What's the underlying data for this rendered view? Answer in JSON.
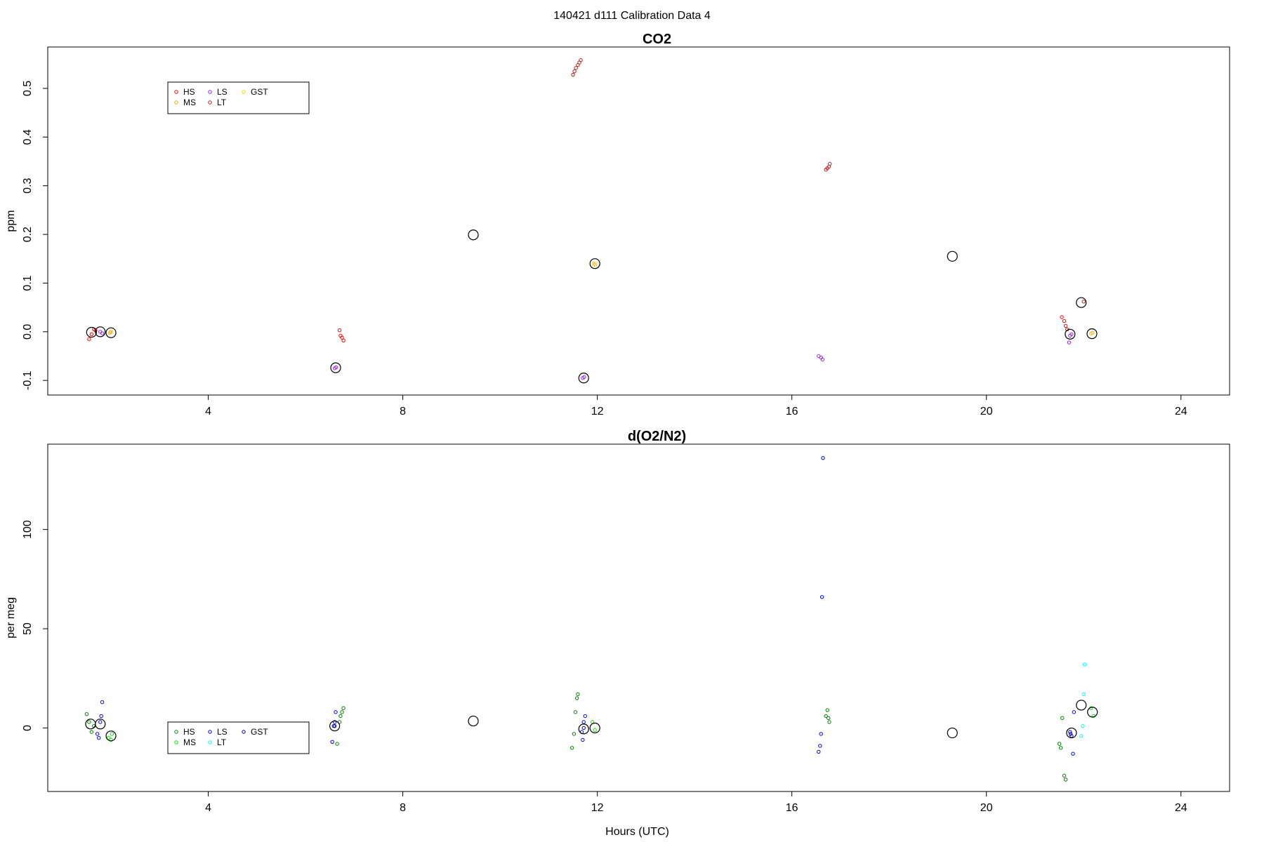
{
  "figure_title": "140421   d111   Calibration Data 4",
  "chart_data": [
    {
      "type": "scatter",
      "title": "CO2",
      "xlabel": "",
      "ylabel": "ppm",
      "xlim": [
        0.7,
        25
      ],
      "ylim": [
        -0.13,
        0.585
      ],
      "xticks": [
        4,
        8,
        12,
        16,
        20,
        24
      ],
      "yticks": [
        -0.1,
        0.0,
        0.1,
        0.2,
        0.3,
        0.4,
        0.5
      ],
      "ytick_labels": [
        "-0.1",
        "0.0",
        "0.1",
        "0.2",
        "0.3",
        "0.4",
        "0.5"
      ],
      "legend": {
        "position": "top-left",
        "entries": [
          {
            "label": "HS",
            "color": "#ff0000"
          },
          {
            "label": "MS",
            "color": "#ffa500"
          },
          {
            "label": "LS",
            "color": "#a020f0"
          },
          {
            "label": "LT",
            "color": "#b22222"
          },
          {
            "label": "GST",
            "color": "#ffd700"
          }
        ]
      },
      "series": [
        {
          "name": "HS",
          "color": "#ff0000",
          "x": [
            1.55,
            1.6,
            1.65,
            1.68,
            6.7,
            6.72,
            6.75,
            6.78,
            21.55,
            21.6,
            21.63,
            21.66
          ],
          "y": [
            -0.015,
            -0.005,
            0.005,
            0.003,
            0.003,
            -0.008,
            -0.012,
            -0.018,
            0.03,
            0.022,
            0.012,
            0.005
          ]
        },
        {
          "name": "MS",
          "color": "#ffa500",
          "x": [
            1.98,
            2.0,
            11.93,
            11.95,
            22.15,
            22.18
          ],
          "y": [
            -0.002,
            0.0,
            0.14,
            0.138,
            -0.004,
            -0.002
          ]
        },
        {
          "name": "LS",
          "color": "#a020f0",
          "x": [
            1.78,
            1.82,
            6.6,
            6.63,
            11.7,
            11.73,
            16.55,
            16.6,
            16.63,
            21.72,
            21.75,
            21.7
          ],
          "y": [
            0.0,
            -0.003,
            -0.075,
            -0.073,
            -0.095,
            -0.093,
            -0.05,
            -0.053,
            -0.057,
            -0.008,
            -0.005,
            -0.022
          ]
        },
        {
          "name": "LT",
          "color": "#b22222",
          "x": [
            11.5,
            11.53,
            11.56,
            11.6,
            11.63,
            11.66,
            16.7,
            16.73,
            16.76,
            16.78,
            22.0
          ],
          "y": [
            0.528,
            0.535,
            0.542,
            0.548,
            0.553,
            0.558,
            0.333,
            0.336,
            0.339,
            0.345,
            0.062
          ]
        },
        {
          "name": "GST",
          "color": "#ffd700",
          "x": [
            11.93,
            22.15
          ],
          "y": [
            0.14,
            -0.004
          ]
        },
        {
          "name": "",
          "color": "#000000",
          "marker": "large-circle",
          "x": [
            1.6,
            1.78,
            2.0,
            6.62,
            9.45,
            11.72,
            11.95,
            19.3,
            21.72,
            21.95,
            22.17
          ],
          "y": [
            -0.001,
            0.0,
            -0.002,
            -0.074,
            0.199,
            -0.095,
            0.14,
            0.155,
            -0.005,
            0.06,
            -0.004
          ]
        }
      ]
    },
    {
      "type": "scatter",
      "title": "d(O2/N2)",
      "xlabel": "Hours (UTC)",
      "ylabel": "per meg",
      "xlim": [
        0.7,
        25
      ],
      "ylim": [
        -32,
        143
      ],
      "xticks": [
        4,
        8,
        12,
        16,
        20,
        24
      ],
      "yticks": [
        0,
        50,
        100
      ],
      "ytick_labels": [
        "0",
        "50",
        "100"
      ],
      "legend": {
        "position": "bottom-left",
        "entries": [
          {
            "label": "HS",
            "color": "#008000"
          },
          {
            "label": "MS",
            "color": "#00ee00"
          },
          {
            "label": "LS",
            "color": "#0000ff"
          },
          {
            "label": "LT",
            "color": "#00ffff"
          },
          {
            "label": "GST",
            "color": "#00008b"
          }
        ]
      },
      "series": [
        {
          "name": "HS",
          "color": "#008000",
          "x": [
            1.5,
            1.55,
            1.6,
            1.65,
            6.65,
            6.7,
            6.72,
            6.75,
            6.78,
            11.48,
            11.52,
            11.55,
            11.58,
            11.6,
            16.7,
            16.73,
            16.75,
            16.77,
            21.5,
            21.53,
            21.56,
            21.6,
            21.63
          ],
          "y": [
            7,
            3,
            -2,
            1,
            -8,
            3,
            6,
            8,
            10,
            -10,
            -3,
            8,
            15,
            17,
            6,
            9,
            5,
            3,
            -8,
            -10,
            5,
            -24,
            -26
          ]
        },
        {
          "name": "MS",
          "color": "#00ee00",
          "x": [
            1.95,
            2.0,
            2.02,
            11.9,
            11.95,
            22.15,
            22.2
          ],
          "y": [
            -5,
            -6,
            -3,
            3,
            -1,
            10,
            6
          ]
        },
        {
          "name": "LS",
          "color": "#0000ff",
          "x": [
            1.72,
            1.75,
            1.78,
            1.8,
            1.82,
            6.55,
            6.58,
            6.6,
            6.62,
            11.68,
            11.7,
            11.72,
            11.75,
            16.55,
            16.58,
            16.6,
            16.62,
            16.64,
            21.72,
            21.75,
            21.78,
            21.8
          ],
          "y": [
            -3,
            -5,
            3,
            6,
            13,
            -7,
            1,
            3,
            8,
            -2,
            -6,
            3,
            6,
            -12,
            -9,
            -3,
            66,
            136,
            -2,
            -4,
            -13,
            8
          ]
        },
        {
          "name": "LT",
          "color": "#00ffff",
          "x": [
            21.95,
            21.98,
            22.0,
            22.02
          ],
          "y": [
            -4,
            1,
            17,
            32
          ]
        },
        {
          "name": "GST",
          "color": "#00008b",
          "x": [
            6.6,
            11.72,
            21.73
          ],
          "y": [
            1,
            0,
            -3
          ]
        },
        {
          "name": "",
          "color": "#000000",
          "marker": "large-circle",
          "x": [
            1.58,
            1.78,
            2.0,
            6.6,
            9.45,
            11.72,
            11.95,
            19.3,
            21.75,
            21.95,
            22.18
          ],
          "y": [
            2,
            2,
            -4,
            1,
            3.5,
            -0.5,
            0,
            -2.5,
            -2.5,
            11.5,
            8
          ]
        }
      ]
    }
  ]
}
